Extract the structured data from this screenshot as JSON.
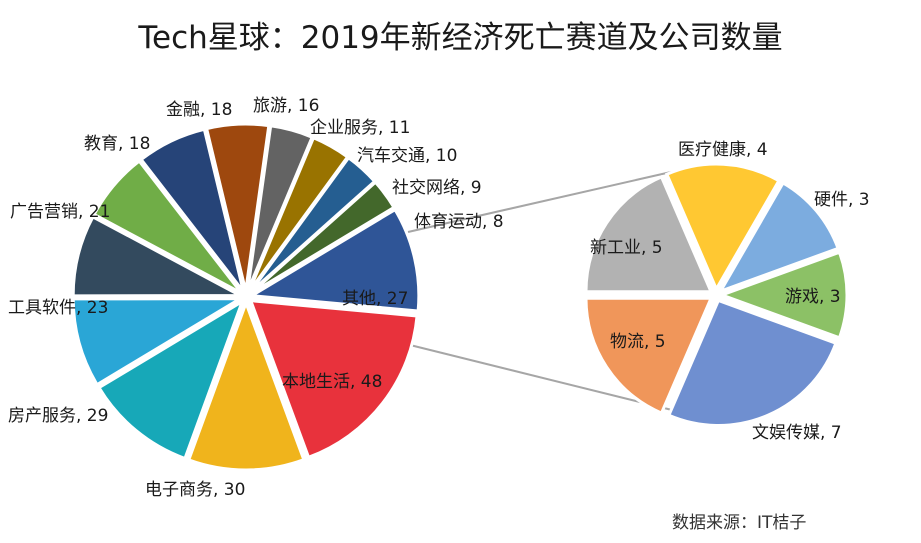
{
  "title": "Tech星球：2019年新经济死亡赛道及公司数量",
  "source": "数据来源：IT桔子",
  "chart_data": [
    {
      "type": "pie",
      "name": "main",
      "slices": [
        {
          "label": "其他",
          "value": 27,
          "color": "#2f5597"
        },
        {
          "label": "本地生活",
          "value": 48,
          "color": "#e8323c"
        },
        {
          "label": "电子商务",
          "value": 30,
          "color": "#f0b41c"
        },
        {
          "label": "房产服务",
          "value": 29,
          "color": "#17a8b8"
        },
        {
          "label": "工具软件",
          "value": 23,
          "color": "#2aa6d6"
        },
        {
          "label": "广告营销",
          "value": 21,
          "color": "#334a5e"
        },
        {
          "label": "教育",
          "value": 18,
          "color": "#70ad47"
        },
        {
          "label": "金融",
          "value": 18,
          "color": "#264478"
        },
        {
          "label": "旅游",
          "value": 16,
          "color": "#9e480e"
        },
        {
          "label": "企业服务",
          "value": 11,
          "color": "#636363"
        },
        {
          "label": "汽车交通",
          "value": 10,
          "color": "#997300"
        },
        {
          "label": "社交网络",
          "value": 9,
          "color": "#255e91"
        },
        {
          "label": "体育运动",
          "value": 8,
          "color": "#43682b"
        }
      ]
    },
    {
      "type": "pie",
      "name": "breakout-of-其他",
      "slices": [
        {
          "label": "文娱传媒",
          "value": 7,
          "color": "#6f8fd0"
        },
        {
          "label": "物流",
          "value": 5,
          "color": "#f0965a"
        },
        {
          "label": "新工业",
          "value": 5,
          "color": "#b2b2b2"
        },
        {
          "label": "医疗健康",
          "value": 4,
          "color": "#ffc832"
        },
        {
          "label": "硬件",
          "value": 3,
          "color": "#7cacdf"
        },
        {
          "label": "游戏",
          "value": 3,
          "color": "#8cc166"
        }
      ]
    }
  ]
}
